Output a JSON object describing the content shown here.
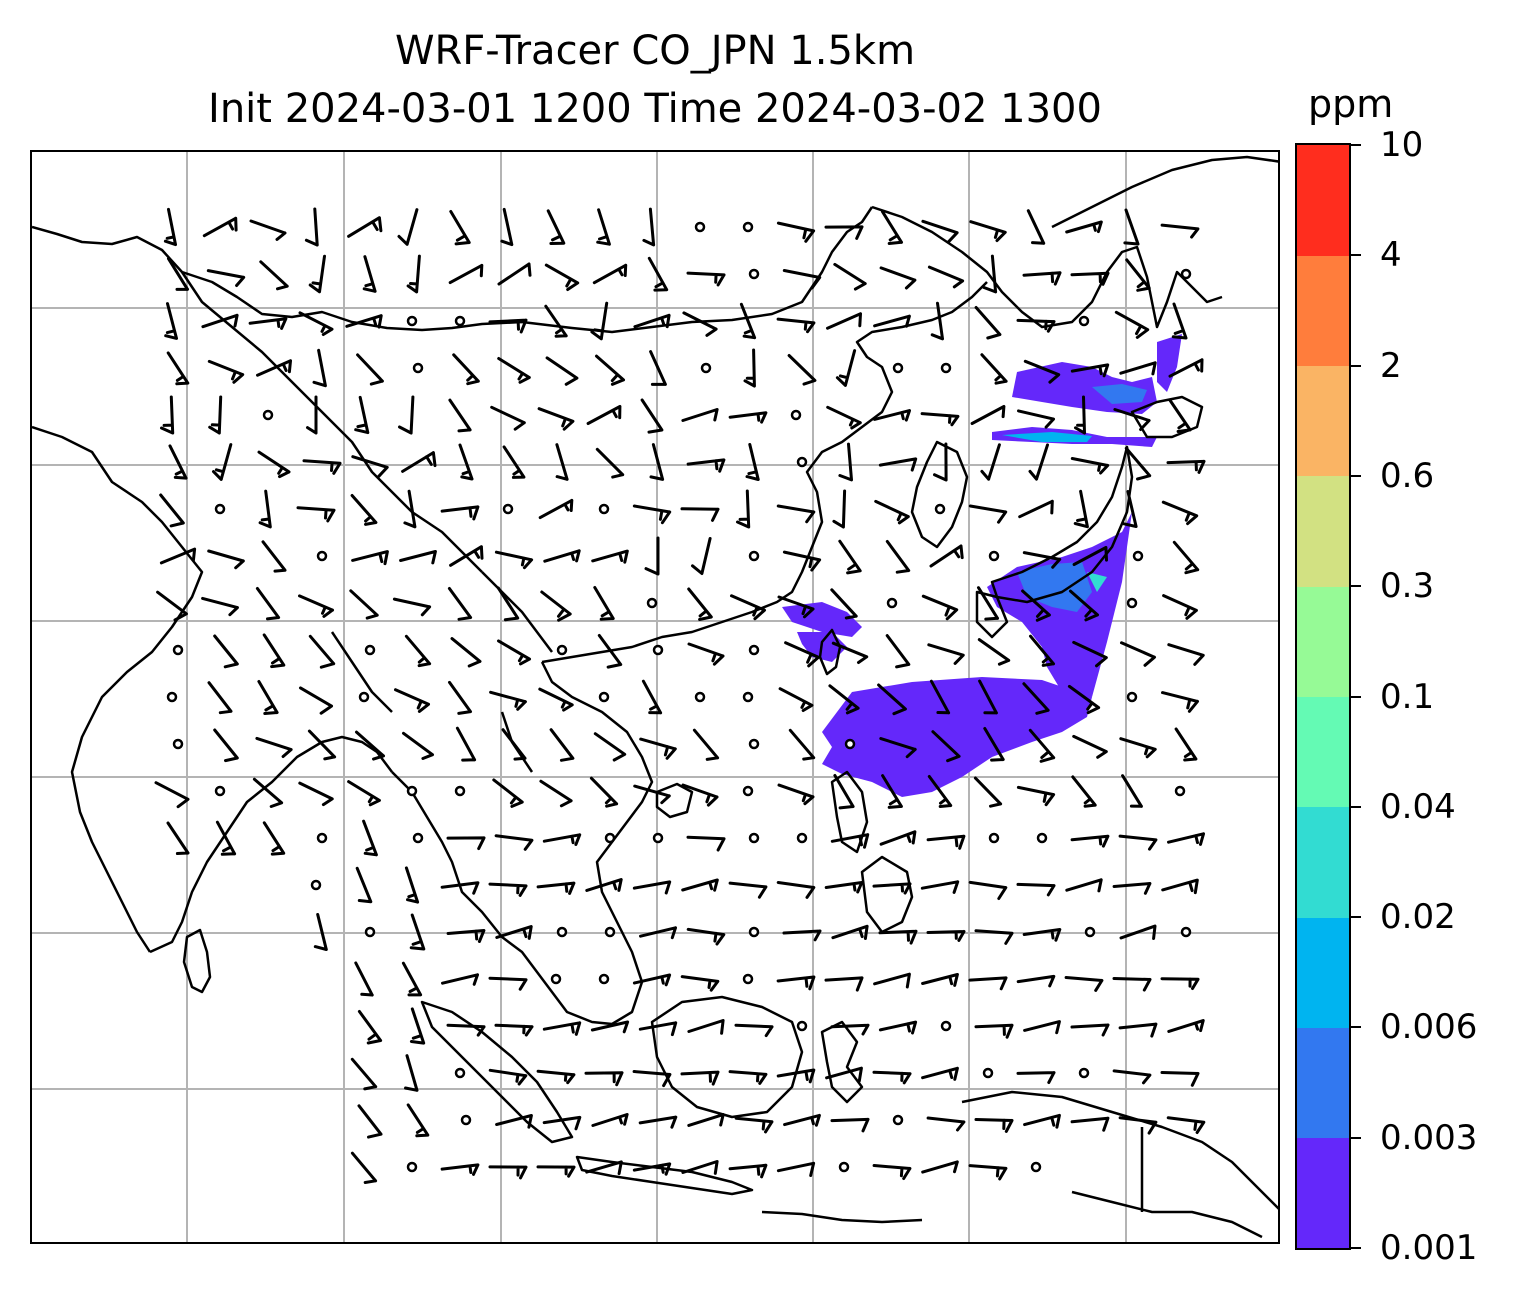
{
  "title": {
    "line1": "WRF-Tracer CO_JPN 1.5km",
    "line2": "Init 2024-03-01 1200 Time 2024-03-02 1300"
  },
  "colorbar": {
    "unit": "ppm",
    "ticks": [
      "0.001",
      "0.003",
      "0.006",
      "0.02",
      "0.04",
      "0.1",
      "0.3",
      "0.6",
      "2",
      "4",
      "10"
    ],
    "colors": [
      "#6428fa",
      "#3278f0",
      "#00b4f0",
      "#32dcd2",
      "#64fab4",
      "#96fa96",
      "#d2e182",
      "#fab464",
      "#ff7d3c",
      "#ff2d1e"
    ]
  },
  "map": {
    "gridline_color": "#b4b4b4",
    "coastline_color": "#000000",
    "wind_barbs": "black barbs on regular grid; circles denote calm",
    "plume_color": "#6428fa"
  }
}
